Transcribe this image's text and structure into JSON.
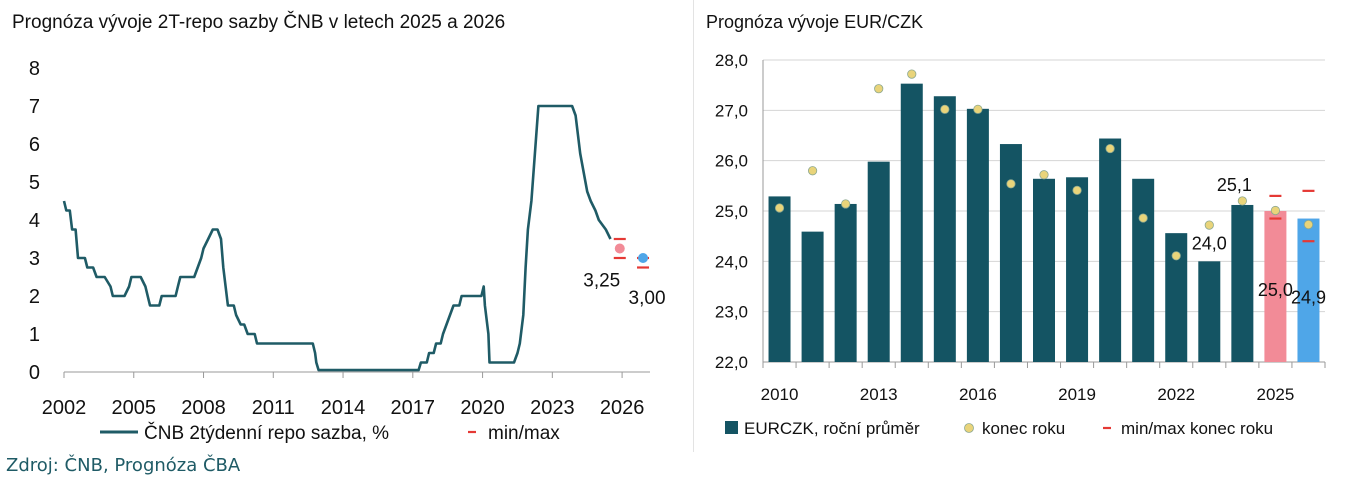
{
  "source": "Zdroj: ČNB, Prognóza ČBA",
  "colors": {
    "line": "#1f5b66",
    "bar": "#145463",
    "forecast_pink": "#f28b97",
    "forecast_blue": "#4fa6e8",
    "dot": "#e9d47a",
    "minmax": "#e53935"
  },
  "chart_data": [
    {
      "type": "line",
      "title": "Prognóza vývoje 2T-repo sazby ČNB v letech 2025 a 2026",
      "xlim": [
        2002,
        2027.2
      ],
      "ylim": [
        0,
        8
      ],
      "yticks": [
        0,
        1,
        2,
        3,
        4,
        5,
        6,
        7,
        8
      ],
      "xticks": [
        2002,
        2005,
        2008,
        2011,
        2014,
        2017,
        2020,
        2023,
        2026
      ],
      "grid": false,
      "legend_position": "bottom",
      "series": [
        {
          "name": "ČNB 2týdenní repo sazba, %",
          "points": [
            [
              2002.0,
              4.5
            ],
            [
              2002.1,
              4.25
            ],
            [
              2002.25,
              4.25
            ],
            [
              2002.35,
              3.75
            ],
            [
              2002.5,
              3.75
            ],
            [
              2002.6,
              3.0
            ],
            [
              2002.9,
              3.0
            ],
            [
              2003.0,
              2.75
            ],
            [
              2003.25,
              2.75
            ],
            [
              2003.4,
              2.5
            ],
            [
              2003.75,
              2.5
            ],
            [
              2004.0,
              2.25
            ],
            [
              2004.1,
              2.0
            ],
            [
              2004.6,
              2.0
            ],
            [
              2004.8,
              2.25
            ],
            [
              2004.9,
              2.5
            ],
            [
              2005.3,
              2.5
            ],
            [
              2005.5,
              2.25
            ],
            [
              2005.6,
              2.0
            ],
            [
              2005.7,
              1.75
            ],
            [
              2006.1,
              1.75
            ],
            [
              2006.2,
              2.0
            ],
            [
              2006.8,
              2.0
            ],
            [
              2006.9,
              2.25
            ],
            [
              2007.0,
              2.5
            ],
            [
              2007.6,
              2.5
            ],
            [
              2007.75,
              2.75
            ],
            [
              2007.9,
              3.0
            ],
            [
              2008.0,
              3.25
            ],
            [
              2008.2,
              3.5
            ],
            [
              2008.4,
              3.75
            ],
            [
              2008.6,
              3.75
            ],
            [
              2008.75,
              3.5
            ],
            [
              2008.85,
              2.75
            ],
            [
              2008.95,
              2.25
            ],
            [
              2009.05,
              1.75
            ],
            [
              2009.3,
              1.75
            ],
            [
              2009.4,
              1.5
            ],
            [
              2009.6,
              1.25
            ],
            [
              2009.75,
              1.25
            ],
            [
              2009.9,
              1.0
            ],
            [
              2010.2,
              1.0
            ],
            [
              2010.3,
              0.75
            ],
            [
              2012.7,
              0.75
            ],
            [
              2012.8,
              0.5
            ],
            [
              2012.85,
              0.25
            ],
            [
              2012.95,
              0.05
            ],
            [
              2017.25,
              0.05
            ],
            [
              2017.35,
              0.25
            ],
            [
              2017.6,
              0.25
            ],
            [
              2017.7,
              0.5
            ],
            [
              2017.9,
              0.5
            ],
            [
              2018.0,
              0.75
            ],
            [
              2018.2,
              0.75
            ],
            [
              2018.3,
              1.0
            ],
            [
              2018.45,
              1.25
            ],
            [
              2018.6,
              1.5
            ],
            [
              2018.75,
              1.75
            ],
            [
              2019.0,
              1.75
            ],
            [
              2019.1,
              2.0
            ],
            [
              2019.95,
              2.0
            ],
            [
              2020.05,
              2.25
            ],
            [
              2020.1,
              1.75
            ],
            [
              2020.25,
              1.0
            ],
            [
              2020.3,
              0.25
            ],
            [
              2021.35,
              0.25
            ],
            [
              2021.5,
              0.5
            ],
            [
              2021.6,
              0.75
            ],
            [
              2021.75,
              1.5
            ],
            [
              2021.85,
              2.75
            ],
            [
              2021.95,
              3.75
            ],
            [
              2022.1,
              4.5
            ],
            [
              2022.25,
              5.75
            ],
            [
              2022.4,
              7.0
            ],
            [
              2023.85,
              7.0
            ],
            [
              2024.0,
              6.75
            ],
            [
              2024.1,
              6.25
            ],
            [
              2024.2,
              5.75
            ],
            [
              2024.35,
              5.25
            ],
            [
              2024.5,
              4.75
            ],
            [
              2024.65,
              4.5
            ],
            [
              2024.85,
              4.25
            ],
            [
              2025.0,
              4.0
            ],
            [
              2025.3,
              3.75
            ],
            [
              2025.5,
              3.5
            ]
          ]
        }
      ],
      "forecasts": [
        {
          "x": 2025.9,
          "value": 3.25,
          "label": "3,25",
          "min": 3.0,
          "max": 3.5,
          "color": "pink"
        },
        {
          "x": 2026.9,
          "value": 3.0,
          "label": "3,00",
          "min": 2.75,
          "max": 3.0,
          "color": "blue"
        }
      ],
      "legend": [
        {
          "label": "ČNB 2týdenní repo sazba, %",
          "symbol": "line"
        },
        {
          "label": "min/max",
          "symbol": "dash"
        }
      ]
    },
    {
      "type": "bar",
      "title": "Prognóza vývoje EUR/CZK",
      "categories": [
        "2010",
        "2011",
        "2012",
        "2013",
        "2014",
        "2015",
        "2016",
        "2017",
        "2018",
        "2019",
        "2020",
        "2021",
        "2022",
        "2023",
        "2024",
        "2025",
        "2026"
      ],
      "xtick_labels": [
        "2010",
        "2013",
        "2016",
        "2019",
        "2022",
        "2025"
      ],
      "ylim": [
        22.0,
        28.0
      ],
      "yticks": [
        "22,0",
        "23,0",
        "24,0",
        "25,0",
        "26,0",
        "27,0",
        "28,0"
      ],
      "grid": true,
      "legend_position": "bottom",
      "series": [
        {
          "name": "EURCZK, roční průměr",
          "values": [
            25.29,
            24.59,
            25.14,
            25.98,
            27.53,
            27.28,
            27.03,
            26.33,
            25.64,
            25.67,
            26.44,
            25.64,
            24.56,
            24.0,
            25.12,
            25.0,
            24.85
          ]
        },
        {
          "name": "konec roku",
          "values": [
            25.06,
            25.8,
            25.14,
            27.43,
            27.72,
            27.02,
            27.02,
            25.54,
            25.72,
            25.41,
            26.24,
            24.86,
            24.11,
            24.72,
            25.2,
            25.01,
            24.73
          ]
        }
      ],
      "forecast_colors": {
        "2025": "pink",
        "2026": "blue"
      },
      "minmax": [
        {
          "category": "2025",
          "min": 24.85,
          "max": 25.3
        },
        {
          "category": "2026",
          "min": 24.4,
          "max": 25.4
        }
      ],
      "data_labels": [
        {
          "category": "2023",
          "text": "24,0"
        },
        {
          "category": "2024",
          "text": "25,1"
        },
        {
          "category": "2025",
          "text": "25,0"
        },
        {
          "category": "2026",
          "text": "24,9"
        }
      ],
      "legend": [
        {
          "label": "EURCZK, roční průměr",
          "symbol": "square"
        },
        {
          "label": "konec roku",
          "symbol": "dot"
        },
        {
          "label": "min/max konec roku",
          "symbol": "dash"
        }
      ]
    }
  ]
}
